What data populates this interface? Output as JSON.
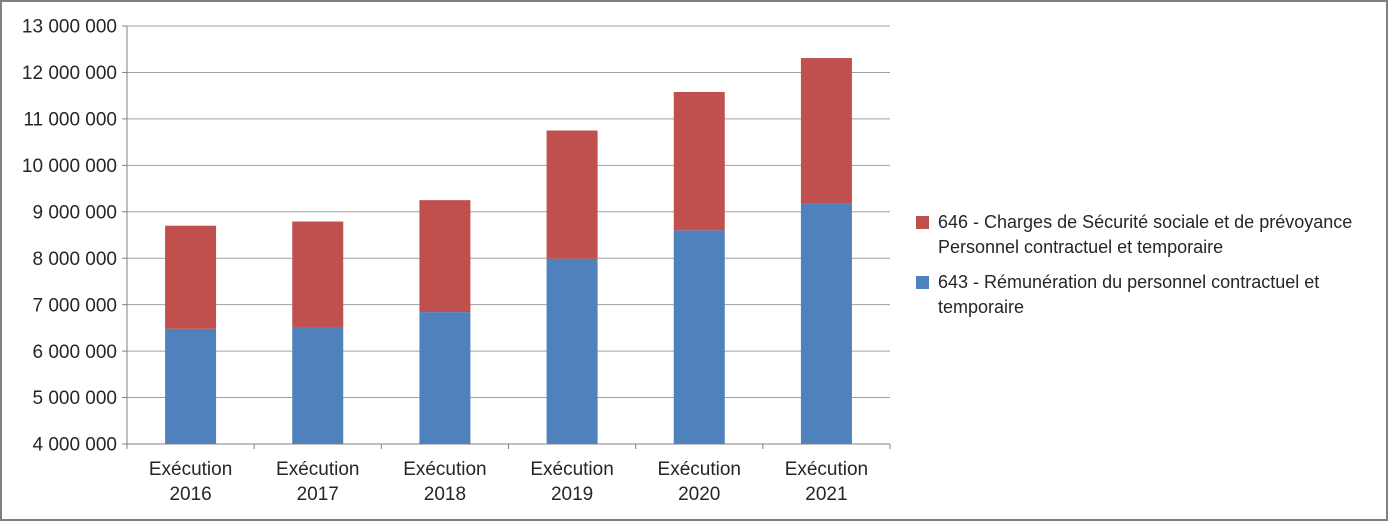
{
  "window": {
    "background": "#FFFFFF",
    "border_color": "#808080"
  },
  "chart_data": {
    "type": "bar",
    "stacked": true,
    "title": "",
    "xlabel": "",
    "ylabel": "",
    "grid": true,
    "legend_position": "right",
    "categories": [
      "Exécution 2016",
      "Exécution 2017",
      "Exécution 2018",
      "Exécution 2019",
      "Exécution 2020",
      "Exécution 2021"
    ],
    "series": [
      {
        "id": "643",
        "name": "643 - Rémunération du personnel contractuel et temporaire",
        "color": "#4F81BD",
        "values": [
          6480000,
          6520000,
          6840000,
          7990000,
          8600000,
          9170000
        ]
      },
      {
        "id": "646",
        "name": "646 - Charges de Sécurité sociale et de prévoyance Personnel contractuel et temporaire",
        "color": "#C0504D",
        "values": [
          2220000,
          2270000,
          2410000,
          2760000,
          2980000,
          3140000
        ]
      }
    ],
    "stacked_totals": [
      8700000,
      8790000,
      9250000,
      10750000,
      11580000,
      12310000
    ],
    "ylim": [
      4000000,
      13000000
    ],
    "ytick_step": 1000000,
    "ytick_labels": [
      "4 000 000",
      "5 000 000",
      "6 000 000",
      "7 000 000",
      "8 000 000",
      "9 000 000",
      "10 000 000",
      "11 000 000",
      "12 000 000",
      "13 000 000"
    ],
    "axis_color": "#808080",
    "gridline_color": "#A0A0A0"
  },
  "legend": {
    "items": [
      {
        "series_id": "646",
        "color": "#C0504D",
        "lines": [
          "646 - Charges de Sécurité sociale et de prévoyance",
          "Personnel contractuel et temporaire"
        ]
      },
      {
        "series_id": "643",
        "color": "#4F81BD",
        "lines": [
          "643 - Rémunération du personnel contractuel et",
          "temporaire"
        ]
      }
    ]
  }
}
